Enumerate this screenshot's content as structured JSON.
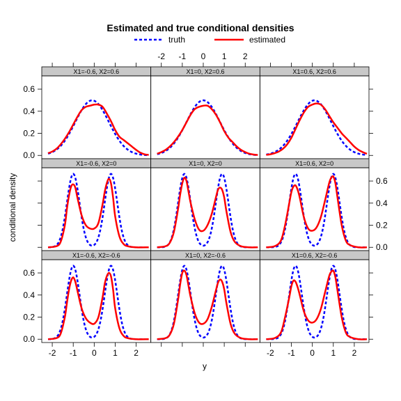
{
  "chart_data": {
    "type": "line",
    "title": "Estimated and true conditional densities",
    "xlabel": "y",
    "ylabel": "conditional density",
    "legend": {
      "placement": "top",
      "entries": [
        {
          "name": "truth",
          "color": "#0000ff",
          "style": "dashed"
        },
        {
          "name": "estimated",
          "color": "#ff0000",
          "style": "solid"
        }
      ]
    },
    "x_ticks": [
      "-2",
      "-1",
      "0",
      "1",
      "2"
    ],
    "y_ticks": [
      "0.0",
      "0.2",
      "0.4",
      "0.6"
    ],
    "xlim": [
      -2.5,
      2.7
    ],
    "ylim": [
      -0.03,
      0.72
    ],
    "panels": [
      {
        "strip": "X1=-0.6, X2=0.6",
        "row": 0,
        "col": 0,
        "kind": "unimodal",
        "truth": {
          "mu": -0.1,
          "sd": 0.8,
          "lo": -2.2,
          "hi": 2.6
        },
        "estimated": {
          "x": [
            -2.2,
            -2.0,
            -1.8,
            -1.6,
            -1.4,
            -1.2,
            -1.0,
            -0.8,
            -0.6,
            -0.4,
            -0.2,
            0.0,
            0.2,
            0.4,
            0.6,
            0.8,
            1.0,
            1.2,
            1.4,
            1.6,
            1.8,
            2.0,
            2.2,
            2.4,
            2.6
          ],
          "y": [
            0.02,
            0.035,
            0.06,
            0.1,
            0.15,
            0.21,
            0.28,
            0.35,
            0.41,
            0.44,
            0.45,
            0.46,
            0.46,
            0.44,
            0.38,
            0.31,
            0.23,
            0.17,
            0.14,
            0.11,
            0.08,
            0.05,
            0.025,
            0.01,
            0.005
          ]
        }
      },
      {
        "strip": "X1=0, X2=0.6",
        "row": 0,
        "col": 1,
        "kind": "unimodal",
        "truth": {
          "mu": 0.0,
          "sd": 0.8,
          "lo": -2.2,
          "hi": 2.6
        },
        "estimated": {
          "x": [
            -2.2,
            -2.0,
            -1.8,
            -1.6,
            -1.4,
            -1.2,
            -1.0,
            -0.8,
            -0.6,
            -0.4,
            -0.2,
            0.0,
            0.2,
            0.4,
            0.6,
            0.8,
            1.0,
            1.2,
            1.4,
            1.6,
            1.8,
            2.0,
            2.2,
            2.4,
            2.6
          ],
          "y": [
            0.015,
            0.03,
            0.05,
            0.08,
            0.12,
            0.17,
            0.23,
            0.3,
            0.37,
            0.42,
            0.44,
            0.45,
            0.45,
            0.42,
            0.37,
            0.3,
            0.22,
            0.16,
            0.12,
            0.08,
            0.05,
            0.03,
            0.015,
            0.008,
            0.004
          ]
        }
      },
      {
        "strip": "X1=0.6, X2=0.6",
        "row": 0,
        "col": 2,
        "kind": "unimodal",
        "truth": {
          "mu": 0.1,
          "sd": 0.8,
          "lo": -2.2,
          "hi": 2.6
        },
        "estimated": {
          "x": [
            -2.2,
            -2.0,
            -1.8,
            -1.6,
            -1.4,
            -1.2,
            -1.0,
            -0.8,
            -0.6,
            -0.4,
            -0.2,
            0.0,
            0.2,
            0.4,
            0.6,
            0.8,
            1.0,
            1.2,
            1.4,
            1.6,
            1.8,
            2.0,
            2.2,
            2.4,
            2.6
          ],
          "y": [
            0.005,
            0.01,
            0.02,
            0.035,
            0.06,
            0.1,
            0.16,
            0.24,
            0.32,
            0.39,
            0.44,
            0.46,
            0.47,
            0.46,
            0.42,
            0.36,
            0.3,
            0.25,
            0.2,
            0.16,
            0.12,
            0.08,
            0.05,
            0.03,
            0.015
          ]
        }
      },
      {
        "strip": "X1=-0.6, X2=0",
        "row": 1,
        "col": 0,
        "kind": "bimodal",
        "truth": {
          "mu1": -1.0,
          "mu2": 0.8,
          "sd": 0.3,
          "w": 0.5,
          "lo": -2.2,
          "hi": 2.6
        },
        "estimated": {
          "x": [
            -2.2,
            -1.8,
            -1.6,
            -1.4,
            -1.3,
            -1.2,
            -1.1,
            -1.0,
            -0.9,
            -0.8,
            -0.6,
            -0.4,
            -0.2,
            0.0,
            0.2,
            0.4,
            0.5,
            0.6,
            0.7,
            0.8,
            0.9,
            1.0,
            1.2,
            1.4,
            1.6,
            2.0,
            2.6
          ],
          "y": [
            0.0,
            0.01,
            0.05,
            0.2,
            0.35,
            0.47,
            0.55,
            0.57,
            0.54,
            0.45,
            0.29,
            0.2,
            0.17,
            0.17,
            0.22,
            0.39,
            0.5,
            0.58,
            0.62,
            0.58,
            0.45,
            0.28,
            0.1,
            0.03,
            0.01,
            0.0,
            0.0
          ]
        }
      },
      {
        "strip": "X1=0, X2=0",
        "row": 1,
        "col": 1,
        "kind": "bimodal",
        "truth": {
          "mu1": -0.9,
          "mu2": 0.9,
          "sd": 0.3,
          "w": 0.5,
          "lo": -2.2,
          "hi": 2.6
        },
        "estimated": {
          "x": [
            -2.2,
            -1.8,
            -1.6,
            -1.4,
            -1.2,
            -1.1,
            -1.0,
            -0.9,
            -0.8,
            -0.7,
            -0.6,
            -0.4,
            -0.2,
            0.0,
            0.2,
            0.4,
            0.6,
            0.7,
            0.8,
            0.9,
            1.0,
            1.1,
            1.3,
            1.5,
            1.8,
            2.2,
            2.6
          ],
          "y": [
            0.0,
            0.01,
            0.04,
            0.14,
            0.35,
            0.48,
            0.58,
            0.63,
            0.6,
            0.5,
            0.4,
            0.25,
            0.16,
            0.15,
            0.2,
            0.3,
            0.45,
            0.52,
            0.54,
            0.52,
            0.45,
            0.33,
            0.14,
            0.05,
            0.01,
            0.0,
            0.0
          ]
        }
      },
      {
        "strip": "X1=0.6, X2=0",
        "row": 1,
        "col": 2,
        "kind": "bimodal",
        "truth": {
          "mu1": -0.8,
          "mu2": 1.0,
          "sd": 0.3,
          "w": 0.5,
          "lo": -2.2,
          "hi": 2.6
        },
        "estimated": {
          "x": [
            -2.2,
            -1.8,
            -1.5,
            -1.3,
            -1.1,
            -1.0,
            -0.9,
            -0.8,
            -0.7,
            -0.6,
            -0.4,
            -0.2,
            0.0,
            0.2,
            0.4,
            0.6,
            0.8,
            0.9,
            1.0,
            1.1,
            1.2,
            1.4,
            1.6,
            1.8,
            2.2,
            2.6
          ],
          "y": [
            0.0,
            0.01,
            0.06,
            0.2,
            0.4,
            0.5,
            0.55,
            0.56,
            0.52,
            0.45,
            0.27,
            0.17,
            0.15,
            0.18,
            0.27,
            0.42,
            0.58,
            0.63,
            0.64,
            0.58,
            0.45,
            0.2,
            0.06,
            0.02,
            0.0,
            0.0
          ]
        }
      },
      {
        "strip": "X1=-0.6, X2=-0.6",
        "row": 2,
        "col": 0,
        "kind": "bimodal",
        "truth": {
          "mu1": -1.0,
          "mu2": 0.8,
          "sd": 0.3,
          "w": 0.5,
          "lo": -2.2,
          "hi": 2.6
        },
        "estimated": {
          "x": [
            -2.2,
            -1.8,
            -1.6,
            -1.4,
            -1.3,
            -1.2,
            -1.1,
            -1.0,
            -0.9,
            -0.8,
            -0.6,
            -0.4,
            -0.2,
            0.0,
            0.2,
            0.4,
            0.5,
            0.6,
            0.7,
            0.8,
            0.9,
            1.0,
            1.2,
            1.4,
            1.6,
            2.0,
            2.6
          ],
          "y": [
            0.0,
            0.01,
            0.05,
            0.2,
            0.33,
            0.45,
            0.53,
            0.56,
            0.52,
            0.44,
            0.28,
            0.19,
            0.15,
            0.14,
            0.2,
            0.38,
            0.5,
            0.57,
            0.6,
            0.57,
            0.45,
            0.28,
            0.1,
            0.03,
            0.01,
            0.0,
            0.0
          ]
        }
      },
      {
        "strip": "X1=0, X2=-0.6",
        "row": 2,
        "col": 1,
        "kind": "bimodal",
        "truth": {
          "mu1": -0.9,
          "mu2": 0.9,
          "sd": 0.3,
          "w": 0.5,
          "lo": -2.2,
          "hi": 2.6
        },
        "estimated": {
          "x": [
            -2.2,
            -1.8,
            -1.6,
            -1.4,
            -1.2,
            -1.1,
            -1.0,
            -0.9,
            -0.8,
            -0.7,
            -0.6,
            -0.4,
            -0.2,
            0.0,
            0.2,
            0.4,
            0.6,
            0.7,
            0.8,
            0.9,
            1.0,
            1.1,
            1.3,
            1.5,
            1.8,
            2.2,
            2.6
          ],
          "y": [
            0.0,
            0.01,
            0.04,
            0.14,
            0.36,
            0.5,
            0.6,
            0.62,
            0.58,
            0.48,
            0.38,
            0.23,
            0.15,
            0.14,
            0.18,
            0.29,
            0.44,
            0.51,
            0.54,
            0.52,
            0.45,
            0.33,
            0.14,
            0.05,
            0.01,
            0.0,
            0.0
          ]
        }
      },
      {
        "strip": "X1=0.6, X2=-0.6",
        "row": 2,
        "col": 2,
        "kind": "bimodal",
        "truth": {
          "mu1": -0.8,
          "mu2": 1.0,
          "sd": 0.3,
          "w": 0.5,
          "lo": -2.2,
          "hi": 2.6
        },
        "estimated": {
          "x": [
            -2.2,
            -1.8,
            -1.5,
            -1.3,
            -1.1,
            -1.0,
            -0.9,
            -0.8,
            -0.7,
            -0.6,
            -0.4,
            -0.2,
            0.0,
            0.2,
            0.4,
            0.6,
            0.8,
            0.9,
            1.0,
            1.1,
            1.2,
            1.4,
            1.6,
            1.8,
            2.2,
            2.6
          ],
          "y": [
            0.0,
            0.01,
            0.06,
            0.2,
            0.38,
            0.48,
            0.53,
            0.52,
            0.47,
            0.4,
            0.25,
            0.17,
            0.15,
            0.18,
            0.27,
            0.42,
            0.57,
            0.61,
            0.62,
            0.56,
            0.44,
            0.2,
            0.06,
            0.02,
            0.0,
            0.0
          ]
        }
      }
    ]
  }
}
